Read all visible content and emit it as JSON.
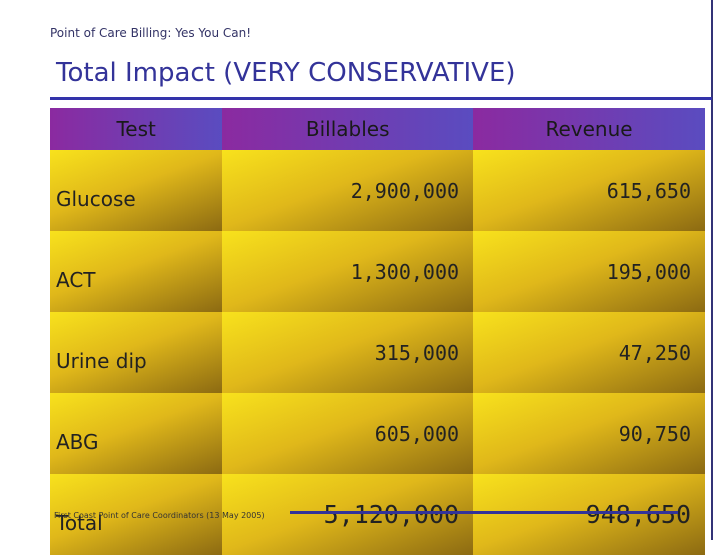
{
  "header": {
    "title": "Point of Care Billing:  Yes You Can!"
  },
  "title": "Total Impact (VERY CONSERVATIVE)",
  "table": {
    "columns": [
      "Test",
      "Billables",
      "Revenue"
    ],
    "rows": [
      [
        "Glucose",
        "2,900,000",
        "615,650"
      ],
      [
        "ACT",
        "1,300,000",
        "195,000"
      ],
      [
        "Urine dip",
        "315,000",
        "47,250"
      ],
      [
        "ABG",
        "605,000",
        "90,750"
      ],
      [
        "Total",
        "5,120,000",
        "948,650"
      ]
    ]
  },
  "footer": "First Coast Point of Care Coordinators (13 May 2005)"
}
